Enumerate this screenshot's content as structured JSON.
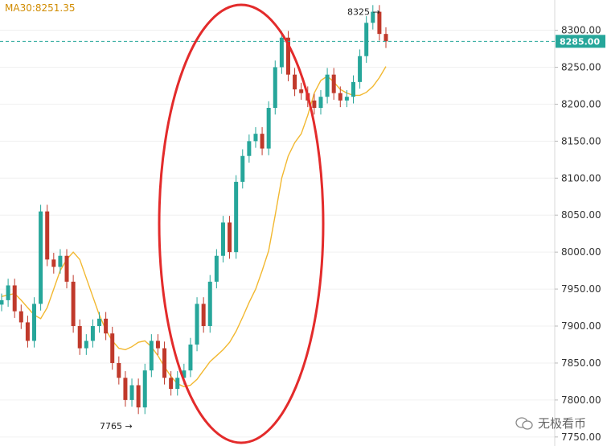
{
  "indicator": {
    "label": "MA30:8251.35"
  },
  "watermark": {
    "text": "无极看币"
  },
  "colors": {
    "up": "#26a69a",
    "down": "#c0392b",
    "ma": "#f2b830",
    "annotation_ellipse": "#e32b2b",
    "current_line": "#26a69a"
  },
  "chart_data": {
    "type": "candlestick",
    "ylim": [
      7740,
      8330
    ],
    "yticks": [
      7750,
      7800,
      7850,
      7900,
      7950,
      8000,
      8050,
      8100,
      8150,
      8200,
      8250,
      8300
    ],
    "ytick_labels": [
      "7750.00",
      "7800.00",
      "7850.00",
      "7900.00",
      "7950.00",
      "8000.00",
      "8050.00",
      "8100.00",
      "8150.00",
      "8200.00",
      "8250.00",
      "8300.00"
    ],
    "current_price": 8285,
    "current_price_label": "8285.00",
    "annotations": [
      {
        "text": "7765 →",
        "value": 7765
      },
      {
        "text": "8325 →",
        "value": 8325
      }
    ],
    "ma_series": {
      "name": "MA30",
      "values": [
        7940,
        7942,
        7944,
        7935,
        7925,
        7915,
        7910,
        7925,
        7950,
        7975,
        7990,
        8000,
        7990,
        7965,
        7940,
        7915,
        7895,
        7880,
        7870,
        7868,
        7872,
        7878,
        7880,
        7872,
        7860,
        7845,
        7832,
        7822,
        7818,
        7820,
        7828,
        7840,
        7852,
        7860,
        7868,
        7878,
        7893,
        7912,
        7932,
        7950,
        7975,
        8002,
        8050,
        8100,
        8130,
        8148,
        8160,
        8185,
        8215,
        8232,
        8238,
        8230,
        8220,
        8215,
        8212,
        8212,
        8216,
        8224,
        8236,
        8251
      ]
    },
    "close_series": {
      "values": [
        7935,
        7955,
        7920,
        7905,
        7880,
        7930,
        8055,
        7990,
        7980,
        7995,
        7960,
        7900,
        7870,
        7880,
        7900,
        7910,
        7890,
        7850,
        7830,
        7800,
        7820,
        7790,
        7840,
        7880,
        7870,
        7830,
        7815,
        7830,
        7840,
        7875,
        7930,
        7900,
        7960,
        7995,
        8040,
        8000,
        8095,
        8130,
        8150,
        8160,
        8140,
        8195,
        8250,
        8290,
        8240,
        8220,
        8215,
        8205,
        8195,
        8210,
        8240,
        8215,
        8205,
        8210,
        8230,
        8265,
        8310,
        8325,
        8295,
        8285
      ]
    }
  }
}
